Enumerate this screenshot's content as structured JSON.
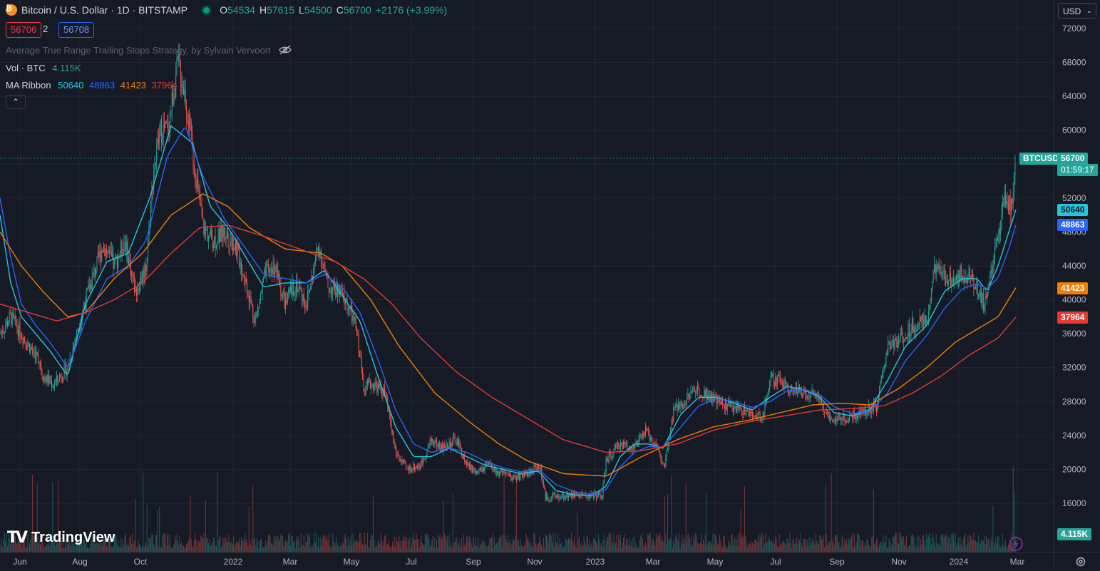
{
  "header": {
    "symbol_title": "Bitcoin / U.S. Dollar · 1D · BITSTAMP",
    "open_label": "O",
    "open": "54534",
    "high_label": "H",
    "high": "57615",
    "low_label": "L",
    "low": "54500",
    "close_label": "C",
    "close": "56700",
    "change": "+2176 (+3.99%)",
    "bid": "56706",
    "spread": "2",
    "ask": "56708"
  },
  "indicators": {
    "strategy_name": "Average True Range Trailing Stops Strategy, by Sylvain Vervoort",
    "volume_label": "Vol · BTC",
    "volume_value": "4.115K",
    "ma_label": "MA Ribbon",
    "ma_values": [
      "50640",
      "48863",
      "41423",
      "37964"
    ]
  },
  "currency_selector": "USD",
  "brand": "TradingView",
  "colors": {
    "background": "#161a25",
    "up": "#26a69a",
    "down": "#ef5350",
    "ma1": "#26c6da",
    "ma2": "#2962ff",
    "ma3": "#f57c00",
    "ma4": "#e53935"
  },
  "chart_data": {
    "type": "candlestick",
    "y_ticks": [
      "72000",
      "68000",
      "64000",
      "60000",
      "56000",
      "52000",
      "48000",
      "44000",
      "40000",
      "36000",
      "32000",
      "28000",
      "24000",
      "20000",
      "16000"
    ],
    "x_ticks": [
      "Jun",
      "Aug",
      "Oct",
      "2022",
      "Mar",
      "May",
      "Jul",
      "Sep",
      "Nov",
      "2023",
      "Mar",
      "May",
      "Jul",
      "Sep",
      "Nov",
      "2024",
      "Mar"
    ],
    "ylim": [
      13500,
      74000
    ],
    "last_price": {
      "symbol": "BTCUSD",
      "price": "56700",
      "countdown": "01:59:17",
      "value": 56700
    },
    "ma_tags": [
      "50640",
      "48863",
      "41423",
      "37964"
    ],
    "volume_tag": "4.115K",
    "price_anchors": [
      [
        0,
        36000
      ],
      [
        15,
        38000
      ],
      [
        30,
        36000
      ],
      [
        45,
        34000
      ],
      [
        55,
        33000
      ],
      [
        60,
        31000
      ],
      [
        75,
        30000
      ],
      [
        95,
        32000
      ],
      [
        120,
        40000
      ],
      [
        145,
        46500
      ],
      [
        160,
        44000
      ],
      [
        175,
        47000
      ],
      [
        190,
        41000
      ],
      [
        205,
        44000
      ],
      [
        215,
        55000
      ],
      [
        225,
        60000
      ],
      [
        235,
        60000
      ],
      [
        250,
        68000
      ],
      [
        260,
        64000
      ],
      [
        270,
        57500
      ],
      [
        285,
        48500
      ],
      [
        300,
        47000
      ],
      [
        315,
        48000
      ],
      [
        330,
        46500
      ],
      [
        345,
        42000
      ],
      [
        358,
        37500
      ],
      [
        372,
        43000
      ],
      [
        385,
        44000
      ],
      [
        400,
        39500
      ],
      [
        415,
        42000
      ],
      [
        430,
        39500
      ],
      [
        447,
        46500
      ],
      [
        460,
        41500
      ],
      [
        475,
        41000
      ],
      [
        490,
        39000
      ],
      [
        500,
        36500
      ],
      [
        510,
        30000
      ],
      [
        525,
        30000
      ],
      [
        540,
        29000
      ],
      [
        555,
        22000
      ],
      [
        570,
        20000
      ],
      [
        590,
        20500
      ],
      [
        605,
        23500
      ],
      [
        620,
        22500
      ],
      [
        640,
        23500
      ],
      [
        655,
        20500
      ],
      [
        670,
        19500
      ],
      [
        685,
        20500
      ],
      [
        700,
        19500
      ],
      [
        720,
        19000
      ],
      [
        740,
        19500
      ],
      [
        757,
        20500
      ],
      [
        765,
        16700
      ],
      [
        785,
        16800
      ],
      [
        805,
        17000
      ],
      [
        825,
        16900
      ],
      [
        845,
        17000
      ],
      [
        850,
        21000
      ],
      [
        870,
        23000
      ],
      [
        890,
        22500
      ],
      [
        905,
        24500
      ],
      [
        920,
        23000
      ],
      [
        932,
        20000
      ],
      [
        945,
        27000
      ],
      [
        960,
        28000
      ],
      [
        975,
        29500
      ],
      [
        990,
        29000
      ],
      [
        1005,
        28000
      ],
      [
        1020,
        27500
      ],
      [
        1045,
        27000
      ],
      [
        1060,
        26000
      ],
      [
        1070,
        26500
      ],
      [
        1080,
        30500
      ],
      [
        1095,
        30500
      ],
      [
        1110,
        29500
      ],
      [
        1130,
        29000
      ],
      [
        1145,
        29000
      ],
      [
        1160,
        26500
      ],
      [
        1175,
        26000
      ],
      [
        1190,
        26000
      ],
      [
        1200,
        26500
      ],
      [
        1215,
        27000
      ],
      [
        1230,
        27500
      ],
      [
        1245,
        34500
      ],
      [
        1260,
        35000
      ],
      [
        1280,
        37000
      ],
      [
        1300,
        37500
      ],
      [
        1310,
        43500
      ],
      [
        1330,
        42500
      ],
      [
        1345,
        43000
      ],
      [
        1360,
        43000
      ],
      [
        1370,
        41500
      ],
      [
        1380,
        39500
      ],
      [
        1390,
        43000
      ],
      [
        1400,
        47500
      ],
      [
        1410,
        52000
      ],
      [
        1418,
        51000
      ],
      [
        1425,
        56700
      ]
    ],
    "ma_series": [
      {
        "value": 50640,
        "anchors": [
          [
            0,
            50000
          ],
          [
            15,
            42000
          ],
          [
            30,
            38000
          ],
          [
            50,
            36000
          ],
          [
            70,
            34000
          ],
          [
            95,
            31000
          ],
          [
            120,
            39500
          ],
          [
            150,
            44500
          ],
          [
            180,
            45500
          ],
          [
            210,
            52000
          ],
          [
            240,
            60500
          ],
          [
            270,
            58500
          ],
          [
            295,
            51000
          ],
          [
            320,
            48500
          ],
          [
            345,
            45000
          ],
          [
            370,
            41500
          ],
          [
            400,
            42000
          ],
          [
            430,
            42000
          ],
          [
            455,
            43500
          ],
          [
            480,
            40500
          ],
          [
            505,
            37500
          ],
          [
            530,
            31000
          ],
          [
            555,
            25000
          ],
          [
            580,
            21500
          ],
          [
            605,
            21500
          ],
          [
            630,
            22500
          ],
          [
            655,
            21500
          ],
          [
            680,
            20500
          ],
          [
            705,
            20000
          ],
          [
            730,
            19500
          ],
          [
            755,
            19800
          ],
          [
            780,
            17500
          ],
          [
            805,
            17000
          ],
          [
            830,
            16900
          ],
          [
            850,
            18000
          ],
          [
            870,
            21500
          ],
          [
            890,
            23000
          ],
          [
            910,
            23000
          ],
          [
            930,
            22500
          ],
          [
            955,
            26500
          ],
          [
            980,
            28500
          ],
          [
            1005,
            28500
          ],
          [
            1030,
            27800
          ],
          [
            1055,
            27000
          ],
          [
            1080,
            28500
          ],
          [
            1105,
            29800
          ],
          [
            1130,
            29300
          ],
          [
            1150,
            28500
          ],
          [
            1170,
            26700
          ],
          [
            1195,
            26300
          ],
          [
            1220,
            27000
          ],
          [
            1245,
            30500
          ],
          [
            1270,
            34500
          ],
          [
            1300,
            37000
          ],
          [
            1325,
            41000
          ],
          [
            1350,
            42500
          ],
          [
            1370,
            42500
          ],
          [
            1385,
            41000
          ],
          [
            1400,
            44000
          ],
          [
            1415,
            48000
          ],
          [
            1425,
            50640
          ]
        ]
      },
      {
        "value": 48863,
        "anchors": [
          [
            0,
            52000
          ],
          [
            15,
            45000
          ],
          [
            30,
            39500
          ],
          [
            50,
            37000
          ],
          [
            70,
            35000
          ],
          [
            95,
            32000
          ],
          [
            120,
            37500
          ],
          [
            150,
            42500
          ],
          [
            180,
            44000
          ],
          [
            205,
            47000
          ],
          [
            235,
            57000
          ],
          [
            260,
            60500
          ],
          [
            285,
            54500
          ],
          [
            315,
            49500
          ],
          [
            345,
            46000
          ],
          [
            370,
            43000
          ],
          [
            400,
            42500
          ],
          [
            430,
            42000
          ],
          [
            455,
            43000
          ],
          [
            480,
            41500
          ],
          [
            505,
            38500
          ],
          [
            530,
            33000
          ],
          [
            555,
            27000
          ],
          [
            580,
            23000
          ],
          [
            605,
            22000
          ],
          [
            630,
            22500
          ],
          [
            655,
            22000
          ],
          [
            680,
            21000
          ],
          [
            705,
            20200
          ],
          [
            730,
            19700
          ],
          [
            755,
            20000
          ],
          [
            780,
            18200
          ],
          [
            805,
            17400
          ],
          [
            830,
            17000
          ],
          [
            850,
            17600
          ],
          [
            870,
            20300
          ],
          [
            890,
            22000
          ],
          [
            910,
            22700
          ],
          [
            930,
            22600
          ],
          [
            955,
            25000
          ],
          [
            980,
            27500
          ],
          [
            1005,
            28300
          ],
          [
            1030,
            28000
          ],
          [
            1055,
            27300
          ],
          [
            1080,
            28000
          ],
          [
            1105,
            29300
          ],
          [
            1130,
            29400
          ],
          [
            1150,
            28800
          ],
          [
            1170,
            27400
          ],
          [
            1195,
            26600
          ],
          [
            1220,
            26800
          ],
          [
            1245,
            29000
          ],
          [
            1270,
            32800
          ],
          [
            1300,
            35800
          ],
          [
            1325,
            39000
          ],
          [
            1350,
            41300
          ],
          [
            1370,
            41900
          ],
          [
            1385,
            41300
          ],
          [
            1400,
            42600
          ],
          [
            1415,
            46000
          ],
          [
            1425,
            48863
          ]
        ]
      },
      {
        "value": 41423,
        "anchors": [
          [
            0,
            48000
          ],
          [
            30,
            44000
          ],
          [
            60,
            41000
          ],
          [
            95,
            38000
          ],
          [
            120,
            38500
          ],
          [
            160,
            42500
          ],
          [
            200,
            45500
          ],
          [
            240,
            50000
          ],
          [
            285,
            52500
          ],
          [
            320,
            51000
          ],
          [
            350,
            48500
          ],
          [
            400,
            46000
          ],
          [
            450,
            45500
          ],
          [
            480,
            44000
          ],
          [
            520,
            40000
          ],
          [
            560,
            34500
          ],
          [
            610,
            29000
          ],
          [
            660,
            25500
          ],
          [
            700,
            23000
          ],
          [
            740,
            21000
          ],
          [
            790,
            19500
          ],
          [
            850,
            19200
          ],
          [
            900,
            21500
          ],
          [
            950,
            23500
          ],
          [
            1000,
            25000
          ],
          [
            1050,
            25800
          ],
          [
            1100,
            26800
          ],
          [
            1140,
            27600
          ],
          [
            1180,
            27800
          ],
          [
            1220,
            27600
          ],
          [
            1260,
            29500
          ],
          [
            1300,
            32000
          ],
          [
            1340,
            35000
          ],
          [
            1380,
            37000
          ],
          [
            1400,
            38000
          ],
          [
            1425,
            41423
          ]
        ]
      },
      {
        "value": 37964,
        "anchors": [
          [
            0,
            39500
          ],
          [
            40,
            38500
          ],
          [
            80,
            37500
          ],
          [
            120,
            38500
          ],
          [
            160,
            40000
          ],
          [
            200,
            42000
          ],
          [
            240,
            45500
          ],
          [
            280,
            48500
          ],
          [
            320,
            48800
          ],
          [
            370,
            47500
          ],
          [
            420,
            46000
          ],
          [
            470,
            44500
          ],
          [
            510,
            42500
          ],
          [
            550,
            39500
          ],
          [
            590,
            35500
          ],
          [
            640,
            31500
          ],
          [
            690,
            28500
          ],
          [
            740,
            26000
          ],
          [
            790,
            23500
          ],
          [
            850,
            22000
          ],
          [
            900,
            22200
          ],
          [
            950,
            23000
          ],
          [
            1000,
            24600
          ],
          [
            1050,
            25600
          ],
          [
            1100,
            26300
          ],
          [
            1150,
            27000
          ],
          [
            1200,
            27200
          ],
          [
            1240,
            27500
          ],
          [
            1280,
            29000
          ],
          [
            1320,
            31000
          ],
          [
            1360,
            33500
          ],
          [
            1400,
            35500
          ],
          [
            1425,
            37964
          ]
        ]
      }
    ]
  }
}
